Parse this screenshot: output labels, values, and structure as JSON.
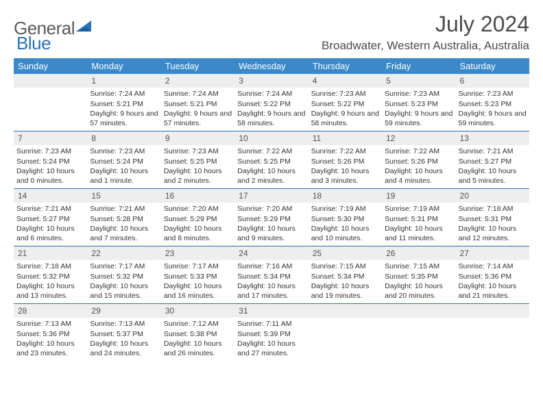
{
  "logo": {
    "text1": "General",
    "text2": "Blue"
  },
  "title": "July 2024",
  "location": "Broadwater, Western Australia, Australia",
  "colors": {
    "header_bg": "#3b89c9",
    "header_text": "#ffffff",
    "daynum_bg": "#eeeeee",
    "daynum_text": "#505050",
    "border": "#2c71b8",
    "body_text": "#333333",
    "title_text": "#4a4a4a"
  },
  "typography": {
    "title_fontsize": 32,
    "location_fontsize": 17,
    "weekday_fontsize": 13,
    "daynum_fontsize": 12,
    "body_fontsize": 10.5
  },
  "weekdays": [
    "Sunday",
    "Monday",
    "Tuesday",
    "Wednesday",
    "Thursday",
    "Friday",
    "Saturday"
  ],
  "weeks": [
    [
      {
        "n": "",
        "sr": "",
        "ss": "",
        "dl": ""
      },
      {
        "n": "1",
        "sr": "Sunrise: 7:24 AM",
        "ss": "Sunset: 5:21 PM",
        "dl": "Daylight: 9 hours and 57 minutes."
      },
      {
        "n": "2",
        "sr": "Sunrise: 7:24 AM",
        "ss": "Sunset: 5:21 PM",
        "dl": "Daylight: 9 hours and 57 minutes."
      },
      {
        "n": "3",
        "sr": "Sunrise: 7:24 AM",
        "ss": "Sunset: 5:22 PM",
        "dl": "Daylight: 9 hours and 58 minutes."
      },
      {
        "n": "4",
        "sr": "Sunrise: 7:23 AM",
        "ss": "Sunset: 5:22 PM",
        "dl": "Daylight: 9 hours and 58 minutes."
      },
      {
        "n": "5",
        "sr": "Sunrise: 7:23 AM",
        "ss": "Sunset: 5:23 PM",
        "dl": "Daylight: 9 hours and 59 minutes."
      },
      {
        "n": "6",
        "sr": "Sunrise: 7:23 AM",
        "ss": "Sunset: 5:23 PM",
        "dl": "Daylight: 9 hours and 59 minutes."
      }
    ],
    [
      {
        "n": "7",
        "sr": "Sunrise: 7:23 AM",
        "ss": "Sunset: 5:24 PM",
        "dl": "Daylight: 10 hours and 0 minutes."
      },
      {
        "n": "8",
        "sr": "Sunrise: 7:23 AM",
        "ss": "Sunset: 5:24 PM",
        "dl": "Daylight: 10 hours and 1 minute."
      },
      {
        "n": "9",
        "sr": "Sunrise: 7:23 AM",
        "ss": "Sunset: 5:25 PM",
        "dl": "Daylight: 10 hours and 2 minutes."
      },
      {
        "n": "10",
        "sr": "Sunrise: 7:22 AM",
        "ss": "Sunset: 5:25 PM",
        "dl": "Daylight: 10 hours and 2 minutes."
      },
      {
        "n": "11",
        "sr": "Sunrise: 7:22 AM",
        "ss": "Sunset: 5:26 PM",
        "dl": "Daylight: 10 hours and 3 minutes."
      },
      {
        "n": "12",
        "sr": "Sunrise: 7:22 AM",
        "ss": "Sunset: 5:26 PM",
        "dl": "Daylight: 10 hours and 4 minutes."
      },
      {
        "n": "13",
        "sr": "Sunrise: 7:21 AM",
        "ss": "Sunset: 5:27 PM",
        "dl": "Daylight: 10 hours and 5 minutes."
      }
    ],
    [
      {
        "n": "14",
        "sr": "Sunrise: 7:21 AM",
        "ss": "Sunset: 5:27 PM",
        "dl": "Daylight: 10 hours and 6 minutes."
      },
      {
        "n": "15",
        "sr": "Sunrise: 7:21 AM",
        "ss": "Sunset: 5:28 PM",
        "dl": "Daylight: 10 hours and 7 minutes."
      },
      {
        "n": "16",
        "sr": "Sunrise: 7:20 AM",
        "ss": "Sunset: 5:29 PM",
        "dl": "Daylight: 10 hours and 8 minutes."
      },
      {
        "n": "17",
        "sr": "Sunrise: 7:20 AM",
        "ss": "Sunset: 5:29 PM",
        "dl": "Daylight: 10 hours and 9 minutes."
      },
      {
        "n": "18",
        "sr": "Sunrise: 7:19 AM",
        "ss": "Sunset: 5:30 PM",
        "dl": "Daylight: 10 hours and 10 minutes."
      },
      {
        "n": "19",
        "sr": "Sunrise: 7:19 AM",
        "ss": "Sunset: 5:31 PM",
        "dl": "Daylight: 10 hours and 11 minutes."
      },
      {
        "n": "20",
        "sr": "Sunrise: 7:18 AM",
        "ss": "Sunset: 5:31 PM",
        "dl": "Daylight: 10 hours and 12 minutes."
      }
    ],
    [
      {
        "n": "21",
        "sr": "Sunrise: 7:18 AM",
        "ss": "Sunset: 5:32 PM",
        "dl": "Daylight: 10 hours and 13 minutes."
      },
      {
        "n": "22",
        "sr": "Sunrise: 7:17 AM",
        "ss": "Sunset: 5:32 PM",
        "dl": "Daylight: 10 hours and 15 minutes."
      },
      {
        "n": "23",
        "sr": "Sunrise: 7:17 AM",
        "ss": "Sunset: 5:33 PM",
        "dl": "Daylight: 10 hours and 16 minutes."
      },
      {
        "n": "24",
        "sr": "Sunrise: 7:16 AM",
        "ss": "Sunset: 5:34 PM",
        "dl": "Daylight: 10 hours and 17 minutes."
      },
      {
        "n": "25",
        "sr": "Sunrise: 7:15 AM",
        "ss": "Sunset: 5:34 PM",
        "dl": "Daylight: 10 hours and 19 minutes."
      },
      {
        "n": "26",
        "sr": "Sunrise: 7:15 AM",
        "ss": "Sunset: 5:35 PM",
        "dl": "Daylight: 10 hours and 20 minutes."
      },
      {
        "n": "27",
        "sr": "Sunrise: 7:14 AM",
        "ss": "Sunset: 5:36 PM",
        "dl": "Daylight: 10 hours and 21 minutes."
      }
    ],
    [
      {
        "n": "28",
        "sr": "Sunrise: 7:13 AM",
        "ss": "Sunset: 5:36 PM",
        "dl": "Daylight: 10 hours and 23 minutes."
      },
      {
        "n": "29",
        "sr": "Sunrise: 7:13 AM",
        "ss": "Sunset: 5:37 PM",
        "dl": "Daylight: 10 hours and 24 minutes."
      },
      {
        "n": "30",
        "sr": "Sunrise: 7:12 AM",
        "ss": "Sunset: 5:38 PM",
        "dl": "Daylight: 10 hours and 26 minutes."
      },
      {
        "n": "31",
        "sr": "Sunrise: 7:11 AM",
        "ss": "Sunset: 5:39 PM",
        "dl": "Daylight: 10 hours and 27 minutes."
      },
      {
        "n": "",
        "sr": "",
        "ss": "",
        "dl": ""
      },
      {
        "n": "",
        "sr": "",
        "ss": "",
        "dl": ""
      },
      {
        "n": "",
        "sr": "",
        "ss": "",
        "dl": ""
      }
    ]
  ]
}
